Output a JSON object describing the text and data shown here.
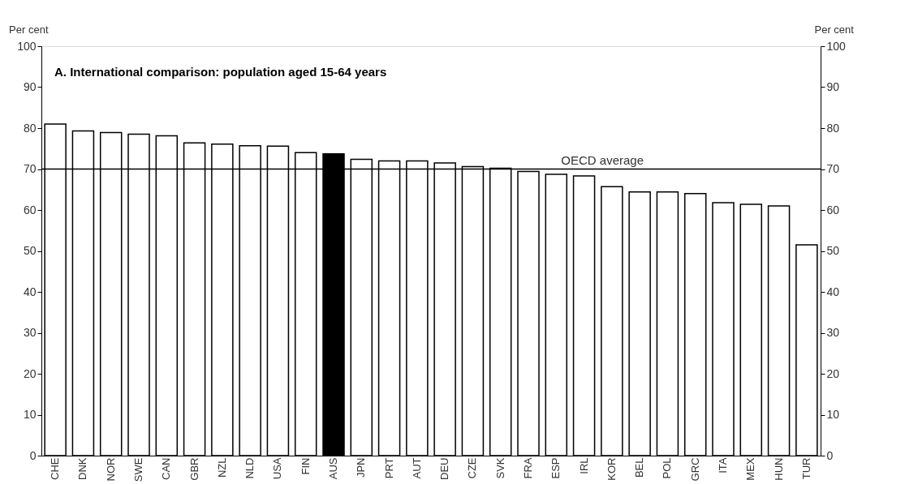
{
  "chart_data": {
    "type": "bar",
    "title": "A. International comparison: population aged 15-64 years",
    "ylabel": "Per cent",
    "y2label": "Per cent",
    "categories": [
      "CHE",
      "DNK",
      "NOR",
      "SWE",
      "CAN",
      "GBR",
      "NZL",
      "NLD",
      "USA",
      "FIN",
      "AUS",
      "JPN",
      "PRT",
      "AUT",
      "DEU",
      "CZE",
      "SVK",
      "FRA",
      "ESP",
      "IRL",
      "KOR",
      "BEL",
      "POL",
      "GRC",
      "ITA",
      "MEX",
      "HUN",
      "TUR"
    ],
    "values": [
      81.0,
      79.3,
      78.9,
      78.5,
      78.1,
      76.4,
      76.1,
      75.7,
      75.6,
      74.0,
      73.7,
      72.4,
      72.0,
      72.0,
      71.5,
      70.6,
      70.2,
      69.4,
      68.7,
      68.3,
      65.7,
      64.4,
      64.4,
      64.0,
      61.8,
      61.4,
      61.0,
      51.5
    ],
    "colors": [
      "#ffffff",
      "#ffffff",
      "#ffffff",
      "#ffffff",
      "#ffffff",
      "#ffffff",
      "#ffffff",
      "#ffffff",
      "#ffffff",
      "#ffffff",
      "#000000",
      "#ffffff",
      "#ffffff",
      "#ffffff",
      "#ffffff",
      "#ffffff",
      "#ffffff",
      "#ffffff",
      "#ffffff",
      "#ffffff",
      "#ffffff",
      "#ffffff",
      "#ffffff",
      "#ffffff",
      "#ffffff",
      "#ffffff",
      "#ffffff",
      "#ffffff"
    ],
    "ylim": [
      0,
      100
    ],
    "yticks": [
      0,
      10,
      20,
      30,
      40,
      50,
      60,
      70,
      80,
      90,
      100
    ],
    "y2lim": [
      0,
      100
    ],
    "y2ticks": [
      0,
      10,
      20,
      30,
      40,
      50,
      60,
      70,
      80,
      90,
      100
    ],
    "ref_lines": [
      {
        "axis": "y",
        "value": 70,
        "label": "OECD average",
        "color": "#000000"
      }
    ],
    "grid": false
  }
}
